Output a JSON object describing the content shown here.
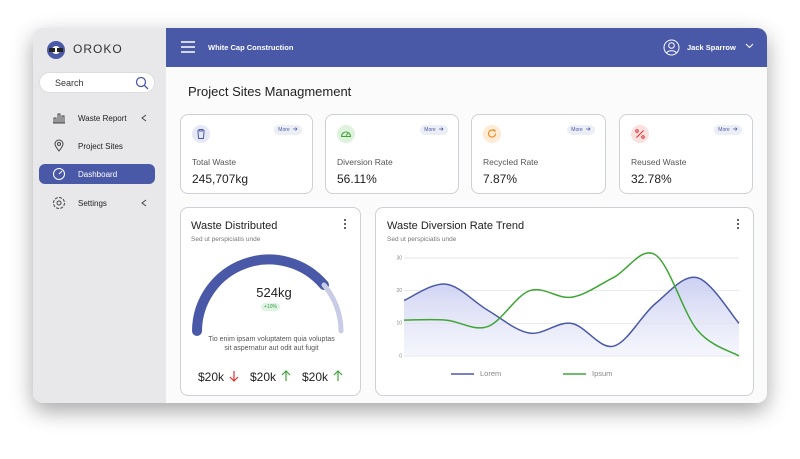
{
  "sidebar": {
    "logo": "OROKO",
    "search": "Search",
    "menu": [
      "Waste Report",
      "Project Sites",
      "Dashboard",
      "Settings"
    ]
  },
  "topbar": {
    "company": "White Cap Construction",
    "user": "Jack Sparrow"
  },
  "page_title": "Project Sites Managmement",
  "cards": [
    {
      "label": "Total Waste",
      "value": "245,707kg",
      "more": "More"
    },
    {
      "label": "Diversion Rate",
      "value": "56.11%",
      "more": "More"
    },
    {
      "label": "Recycled Rate",
      "value": "7.87%",
      "more": "More"
    },
    {
      "label": "Reused Waste",
      "value": "32.78%",
      "more": "More"
    }
  ],
  "gauge_card": {
    "title": "Waste Distributed",
    "subtitle": "Sed ut perspiciatis unde",
    "value": "524kg",
    "change": "+10%",
    "description": [
      "Tio enim ipsam voluptatem quia voluptas",
      "sit aspernatur aut odit aut fugit"
    ],
    "stats": [
      "$20k",
      "$20k",
      "$20k"
    ]
  },
  "chart_data": {
    "type": "line",
    "title": "Waste Diversion Rate Trend",
    "subtitle": "Sed ut perspiciatis unde",
    "categories": [
      null,
      null,
      null,
      null,
      null,
      null,
      null,
      null,
      null
    ],
    "series": [
      {
        "name": "Lorem",
        "color": "#4a59a7",
        "values": [
          17,
          22,
          14,
          7,
          10,
          3,
          16,
          24,
          10
        ]
      },
      {
        "name": "Ipsum",
        "color": "#3fa535",
        "values": [
          11,
          11,
          9,
          20,
          18,
          24,
          31,
          8,
          0
        ]
      }
    ],
    "ylim": [
      0,
      30
    ],
    "yticks": [
      0,
      10,
      20,
      30
    ],
    "grid": true
  }
}
